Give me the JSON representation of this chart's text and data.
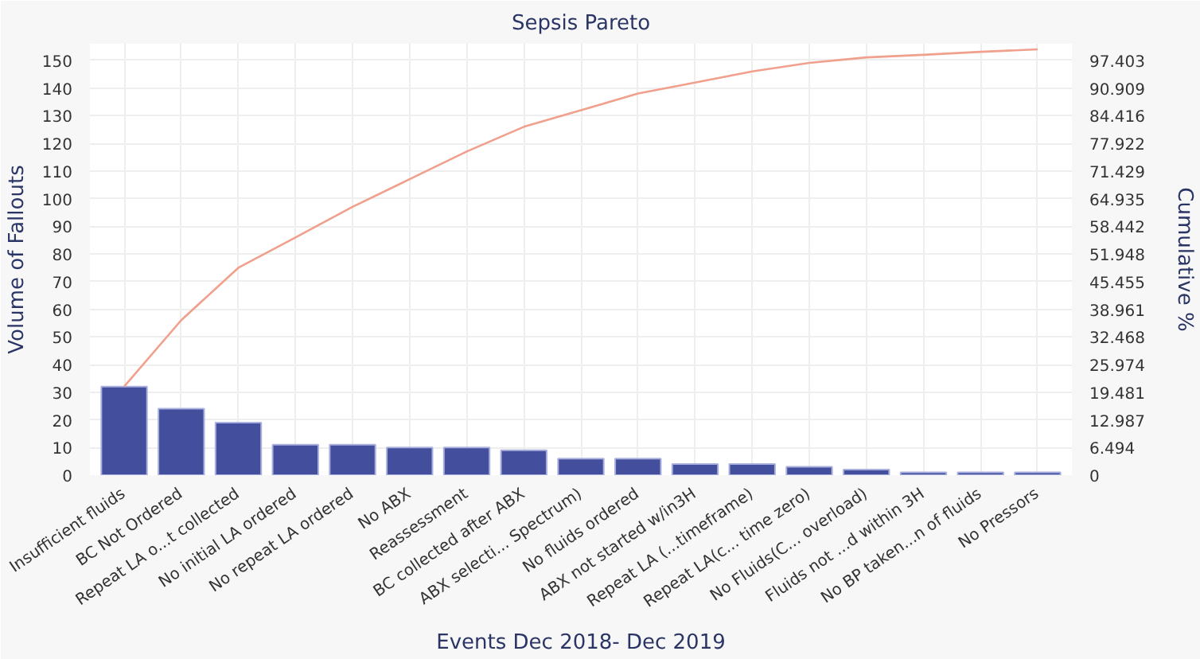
{
  "chart_data": {
    "type": "bar",
    "title": "Sepsis Pareto",
    "xlabel": "Events Dec 2018- Dec 2019",
    "ylabel": "Volume of Fallouts",
    "y2label": "Cumulative %",
    "categories": [
      "Insufficient fluids",
      "BC Not Ordered",
      "Repeat LA o...t collected",
      "No initial LA ordered",
      "No repeat LA ordered",
      "No ABX",
      "Reassessment",
      "BC collected after ABX",
      "ABX selecti... Spectrum)",
      "No fluids ordered",
      "ABX not started w/in3H",
      "Repeat LA (...timeframe)",
      "Repeat LA(c... time zero)",
      "No Fluids(C... overload)",
      "Fluids not ...d within 3H",
      "No BP taken...n of fluids",
      "No Pressors"
    ],
    "series": [
      {
        "color": "#434f9c",
        "values": [
          32,
          24,
          19,
          11,
          11,
          10,
          10,
          9,
          6,
          6,
          4,
          4,
          3,
          2,
          1,
          1,
          1
        ]
      },
      {
        "type": "line",
        "axis": "y2",
        "color": "#f0a08c",
        "values": [
          20.8,
          36.4,
          48.7,
          55.8,
          63,
          69.5,
          76,
          81.8,
          85.7,
          89.6,
          92.2,
          94.8,
          96.8,
          98.1,
          98.7,
          99.4,
          100
        ]
      }
    ],
    "ylim": [
      0,
      156
    ],
    "yticks": [
      0,
      10,
      20,
      30,
      40,
      50,
      60,
      70,
      80,
      90,
      100,
      110,
      120,
      130,
      140,
      150
    ],
    "y2lim": [
      0,
      101.299
    ],
    "y2ticks": [
      0,
      6.494,
      12.987,
      19.481,
      25.974,
      32.468,
      38.961,
      45.455,
      51.948,
      58.442,
      64.935,
      71.429,
      77.922,
      84.416,
      90.909,
      97.403
    ],
    "grid": true,
    "marker": "none",
    "line_style": "solid"
  }
}
